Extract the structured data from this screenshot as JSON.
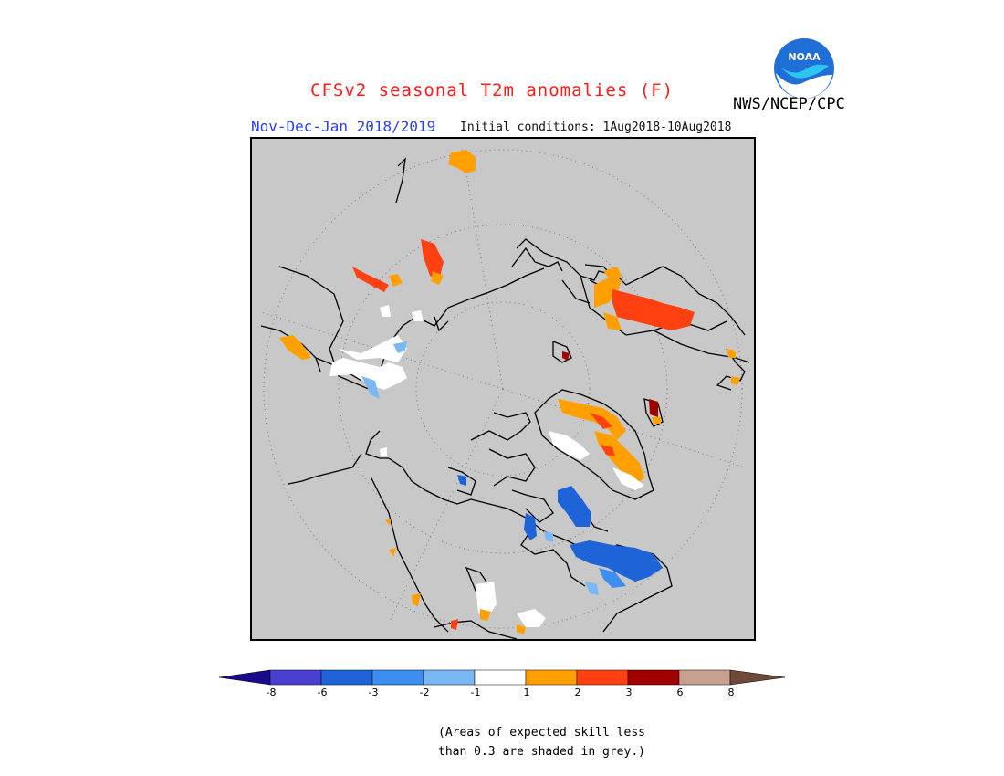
{
  "header": {
    "title": "CFSv2 seasonal T2m anomalies (F)",
    "subtitle": "Nov-Dec-Jan 2018/2019",
    "initial_conditions": "Initial conditions: 1Aug2018-10Aug2018",
    "agency": "NWS/NCEP/CPC",
    "logo_text": "NOAA"
  },
  "colors": {
    "background_grey": "#c8c8c8",
    "title_red": "#ff1a1a",
    "subtitle_blue": "#2b3ff0"
  },
  "legend": {
    "tick_labels": [
      "-8",
      "-6",
      "-3",
      "-2",
      "-1",
      "1",
      "2",
      "3",
      "6",
      "8"
    ],
    "bins": [
      {
        "color": "#1a0a8c"
      },
      {
        "color": "#4a3fd0"
      },
      {
        "color": "#1e64d8"
      },
      {
        "color": "#3c8ff0"
      },
      {
        "color": "#78b8f5"
      },
      {
        "color": "#ffffff"
      },
      {
        "color": "#ffa000"
      },
      {
        "color": "#ff4010"
      },
      {
        "color": "#a00000"
      },
      {
        "color": "#c8a090"
      },
      {
        "color": "#6e4a3a"
      }
    ]
  },
  "footnote": {
    "line1": "(Areas of expected skill less",
    "line2": "than 0.3 are shaded in grey.)"
  }
}
